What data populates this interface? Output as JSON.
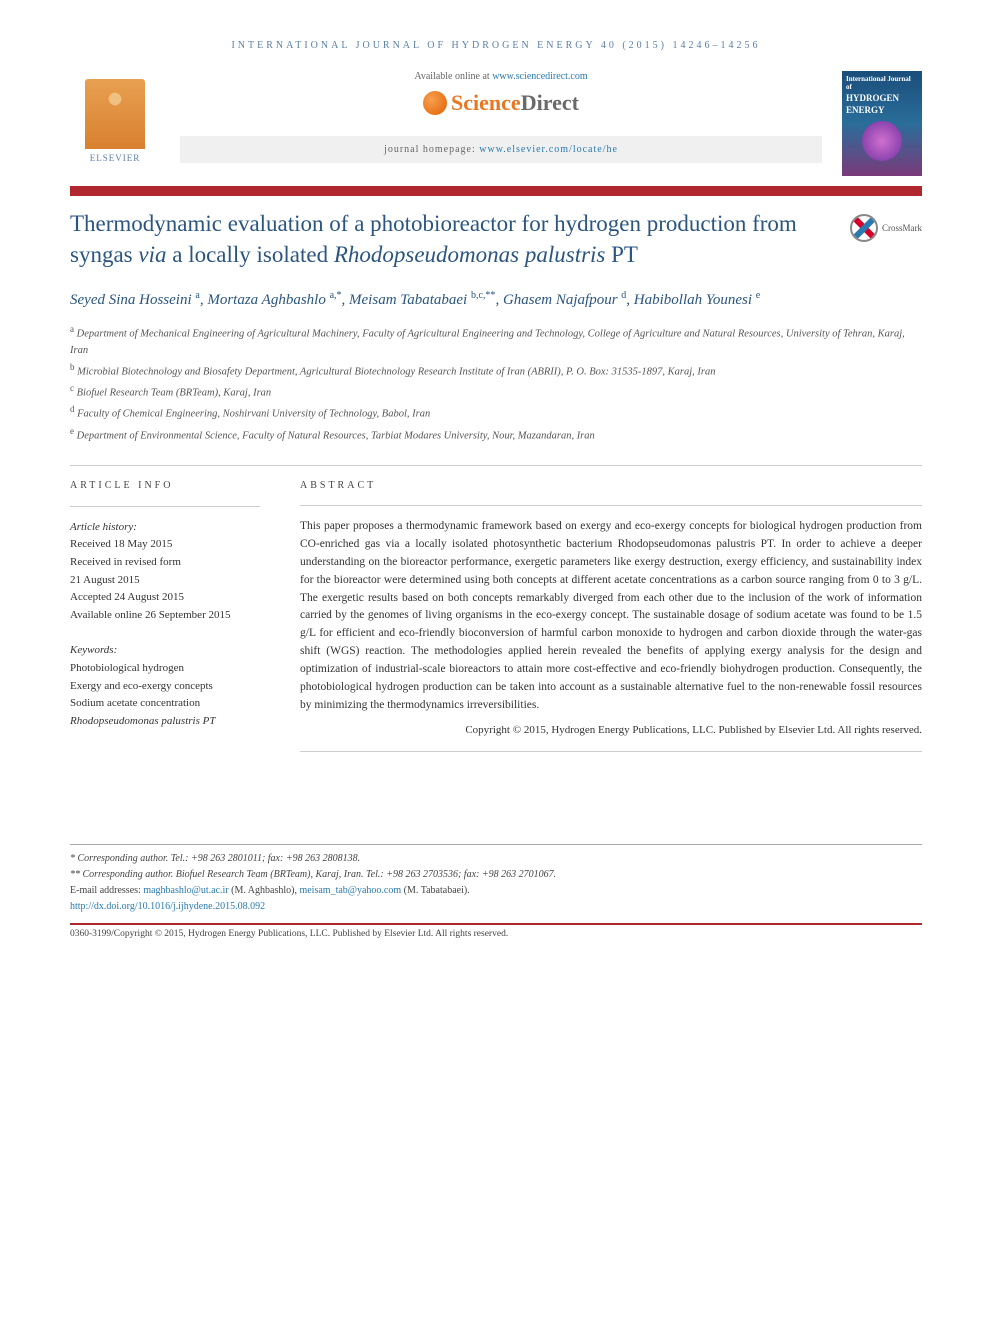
{
  "journal_header": "INTERNATIONAL JOURNAL OF HYDROGEN ENERGY 40 (2015) 14246–14256",
  "available_prefix": "Available online at ",
  "available_link": "www.sciencedirect.com",
  "sd_brand_1": "Science",
  "sd_brand_2": "Direct",
  "homepage_prefix": "journal homepage: ",
  "homepage_link": "www.elsevier.com/locate/he",
  "elsevier_label": "ELSEVIER",
  "cover": {
    "line1": "International Journal of",
    "line2": "HYDROGEN",
    "line3": "ENERGY"
  },
  "crossmark_label": "CrossMark",
  "title_parts": {
    "p1": "Thermodynamic evaluation of a photobioreactor for hydrogen production from syngas ",
    "via": "via",
    "p2": " a locally isolated ",
    "species": "Rhodopseudomonas palustris",
    "p3": " PT"
  },
  "authors_html": [
    {
      "name": "Seyed Sina Hosseini",
      "sup": "a"
    },
    {
      "name": "Mortaza Aghbashlo",
      "sup": "a,*"
    },
    {
      "name": "Meisam Tabatabaei",
      "sup": "b,c,**"
    },
    {
      "name": "Ghasem Najafpour",
      "sup": "d"
    },
    {
      "name": "Habibollah Younesi",
      "sup": "e"
    }
  ],
  "affiliations": [
    {
      "sup": "a",
      "text": "Department of Mechanical Engineering of Agricultural Machinery, Faculty of Agricultural Engineering and Technology, College of Agriculture and Natural Resources, University of Tehran, Karaj, Iran"
    },
    {
      "sup": "b",
      "text": "Microbial Biotechnology and Biosafety Department, Agricultural Biotechnology Research Institute of Iran (ABRII), P. O. Box: 31535-1897, Karaj, Iran"
    },
    {
      "sup": "c",
      "text": "Biofuel Research Team (BRTeam), Karaj, Iran"
    },
    {
      "sup": "d",
      "text": "Faculty of Chemical Engineering, Noshirvani University of Technology, Babol, Iran"
    },
    {
      "sup": "e",
      "text": "Department of Environmental Science, Faculty of Natural Resources, Tarbiat Modares University, Nour, Mazandaran, Iran"
    }
  ],
  "article_info_label": "ARTICLE INFO",
  "abstract_label": "ABSTRACT",
  "history_label": "Article history:",
  "history_lines": [
    "Received 18 May 2015",
    "Received in revised form",
    "21 August 2015",
    "Accepted 24 August 2015",
    "Available online 26 September 2015"
  ],
  "keywords_label": "Keywords:",
  "keywords": [
    "Photobiological hydrogen",
    "Exergy and eco-exergy concepts",
    "Sodium acetate concentration",
    "Rhodopseudomonas palustris PT"
  ],
  "abstract_text": "This paper proposes a thermodynamic framework based on exergy and eco-exergy concepts for biological hydrogen production from CO-enriched gas via a locally isolated photosynthetic bacterium Rhodopseudomonas palustris PT. In order to achieve a deeper understanding on the bioreactor performance, exergetic parameters like exergy destruction, exergy efficiency, and sustainability index for the bioreactor were determined using both concepts at different acetate concentrations as a carbon source ranging from 0 to 3 g/L. The exergetic results based on both concepts remarkably diverged from each other due to the inclusion of the work of information carried by the genomes of living organisms in the eco-exergy concept. The sustainable dosage of sodium acetate was found to be 1.5 g/L for efficient and eco-friendly bioconversion of harmful carbon monoxide to hydrogen and carbon dioxide through the water-gas shift (WGS) reaction. The methodologies applied herein revealed the benefits of applying exergy analysis for the design and optimization of industrial-scale bioreactors to attain more cost-effective and eco-friendly biohydrogen production. Consequently, the photobiological hydrogen production can be taken into account as a sustainable alternative fuel to the non-renewable fossil resources by minimizing the thermodynamics irreversibilities.",
  "copyright_line": "Copyright © 2015, Hydrogen Energy Publications, LLC. Published by Elsevier Ltd. All rights reserved.",
  "footnotes": {
    "corr1": "* Corresponding author. Tel.: +98 263 2801011; fax: +98 263 2808138.",
    "corr2": "** Corresponding author. Biofuel Research Team (BRTeam), Karaj, Iran. Tel.: +98 263 2703536; fax: +98 263 2701067.",
    "email_label": "E-mail addresses: ",
    "email1": "maghbashlo@ut.ac.ir",
    "email1_name": " (M. Aghbashlo), ",
    "email2": "meisam_tab@yahoo.com",
    "email2_name": " (M. Tabatabaei).",
    "doi": "http://dx.doi.org/10.1016/j.ijhydene.2015.08.092"
  },
  "bottom_line": "0360-3199/Copyright © 2015, Hydrogen Energy Publications, LLC. Published by Elsevier Ltd. All rights reserved.",
  "colors": {
    "accent_blue": "#2a5580",
    "link_blue": "#2a7ab0",
    "red_bar": "#b0282e",
    "orange": "#e87722"
  }
}
